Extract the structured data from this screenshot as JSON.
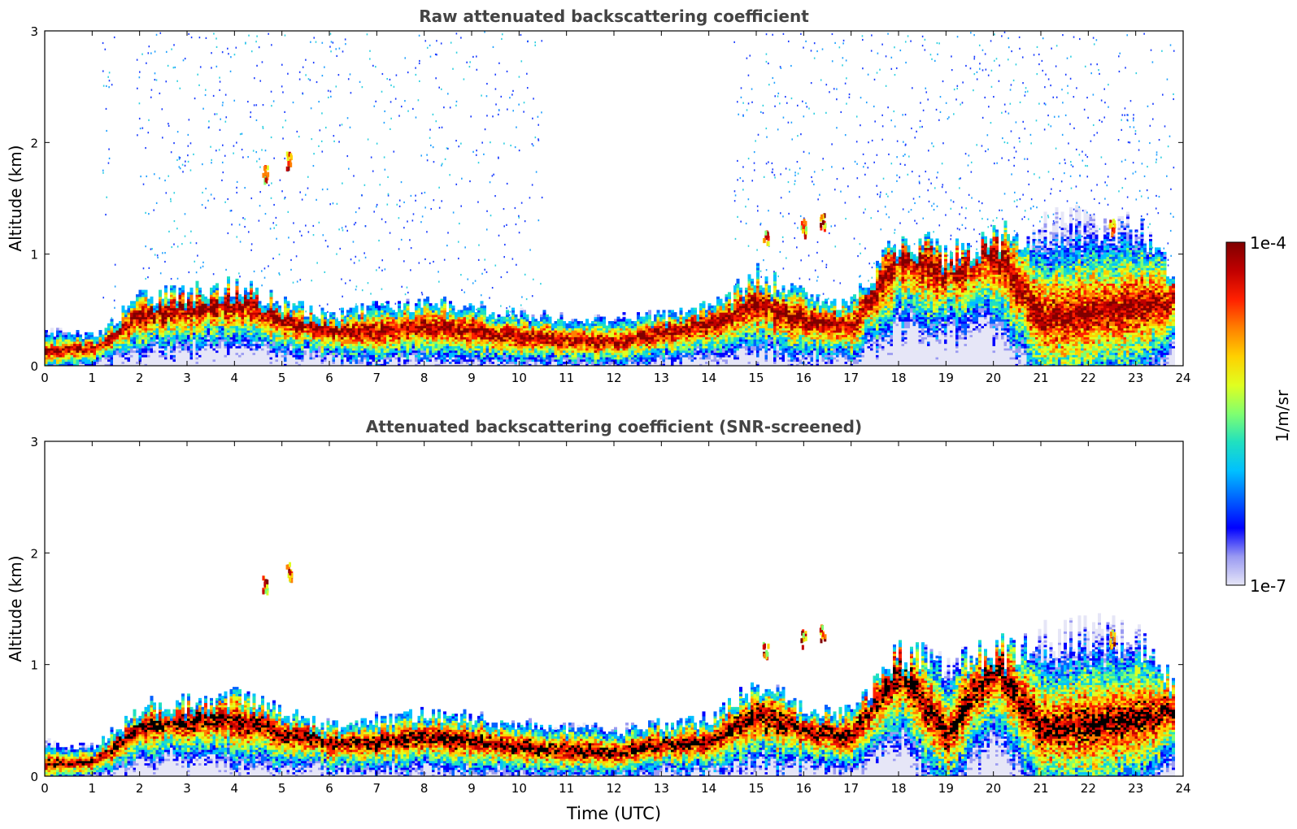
{
  "chart_data": [
    {
      "type": "heatmap",
      "title": "Raw attenuated backscattering coefficient",
      "xlabel": "",
      "ylabel": "Altitude (km)",
      "xlim": [
        0,
        24
      ],
      "ylim": [
        0,
        3
      ],
      "x_ticks": [
        "0",
        "1",
        "2",
        "3",
        "4",
        "5",
        "6",
        "7",
        "8",
        "9",
        "10",
        "11",
        "12",
        "13",
        "14",
        "15",
        "16",
        "17",
        "18",
        "19",
        "20",
        "21",
        "22",
        "23",
        "24"
      ],
      "y_ticks": [
        "0",
        "1",
        "2",
        "3"
      ],
      "description_values": {
        "boundary_layer_top_km": [
          [
            0,
            0.3
          ],
          [
            1,
            0.25
          ],
          [
            2,
            0.6
          ],
          [
            3,
            0.65
          ],
          [
            4,
            0.7
          ],
          [
            5,
            0.55
          ],
          [
            6,
            0.45
          ],
          [
            7,
            0.5
          ],
          [
            8,
            0.55
          ],
          [
            9,
            0.5
          ],
          [
            10,
            0.45
          ],
          [
            11,
            0.42
          ],
          [
            12,
            0.4
          ],
          [
            13,
            0.45
          ],
          [
            14,
            0.5
          ],
          [
            15,
            0.8
          ],
          [
            16,
            0.6
          ],
          [
            17,
            0.55
          ],
          [
            18,
            1.1
          ],
          [
            19,
            1.0
          ],
          [
            20,
            1.1
          ],
          [
            21,
            1.2
          ],
          [
            22,
            1.3
          ],
          [
            23,
            1.2
          ],
          [
            24,
            0.7
          ]
        ],
        "aerosol_layer_core_km": [
          [
            0,
            0.12
          ],
          [
            1,
            0.15
          ],
          [
            2,
            0.45
          ],
          [
            3,
            0.5
          ],
          [
            4,
            0.55
          ],
          [
            5,
            0.4
          ],
          [
            6,
            0.3
          ],
          [
            7,
            0.3
          ],
          [
            8,
            0.35
          ],
          [
            9,
            0.3
          ],
          [
            10,
            0.25
          ],
          [
            11,
            0.22
          ],
          [
            12,
            0.2
          ],
          [
            13,
            0.3
          ],
          [
            14,
            0.35
          ],
          [
            15,
            0.55
          ],
          [
            16,
            0.4
          ],
          [
            17,
            0.35
          ],
          [
            18,
            0.95
          ],
          [
            19,
            0.85
          ],
          [
            20,
            1.0
          ],
          [
            21,
            0.4
          ],
          [
            22,
            0.45
          ],
          [
            23,
            0.5
          ],
          [
            24,
            0.6
          ]
        ],
        "elevated_patches": [
          {
            "t": 4.65,
            "z": 1.68
          },
          {
            "t": 5.15,
            "z": 1.8
          },
          {
            "t": 15.2,
            "z": 1.1
          },
          {
            "t": 16.0,
            "z": 1.2
          },
          {
            "t": 16.4,
            "z": 1.25
          },
          {
            "t": 22.5,
            "z": 1.2
          }
        ],
        "noise_free_gaps_hours": [
          [
            0.0,
            1.2
          ],
          [
            1.5,
            1.9
          ],
          [
            10.5,
            14.5
          ],
          [
            22.4,
            22.6
          ]
        ]
      }
    },
    {
      "type": "heatmap",
      "title": "Attenuated backscattering coefficient (SNR-screened)",
      "xlabel": "Time (UTC)",
      "ylabel": "Altitude (km)",
      "xlim": [
        0,
        24
      ],
      "ylim": [
        0,
        3
      ],
      "x_ticks": [
        "0",
        "1",
        "2",
        "3",
        "4",
        "5",
        "6",
        "7",
        "8",
        "9",
        "10",
        "11",
        "12",
        "13",
        "14",
        "15",
        "16",
        "17",
        "18",
        "19",
        "20",
        "21",
        "22",
        "23",
        "24"
      ],
      "y_ticks": [
        "0",
        "1",
        "2",
        "3"
      ],
      "description_values": {
        "saturated_core_km": [
          [
            0,
            0.1
          ],
          [
            1,
            0.12
          ],
          [
            2,
            0.45
          ],
          [
            3,
            0.5
          ],
          [
            4,
            0.5
          ],
          [
            5,
            0.38
          ],
          [
            6,
            0.28
          ],
          [
            7,
            0.3
          ],
          [
            8,
            0.35
          ],
          [
            9,
            0.3
          ],
          [
            10,
            0.25
          ],
          [
            11,
            0.22
          ],
          [
            12,
            0.2
          ],
          [
            13,
            0.28
          ],
          [
            14,
            0.3
          ],
          [
            15,
            0.55
          ],
          [
            16,
            0.4
          ],
          [
            17,
            0.35
          ],
          [
            18,
            0.95
          ],
          [
            19,
            0.35
          ],
          [
            20,
            1.0
          ],
          [
            21,
            0.4
          ],
          [
            22,
            0.45
          ],
          [
            23,
            0.5
          ],
          [
            24,
            0.6
          ]
        ]
      }
    }
  ],
  "colorbar": {
    "label": "1/m/sr",
    "max_label": "1e-4",
    "min_label": "1e-7",
    "colors": [
      "#e6e6f7",
      "#9a9af2",
      "#0000ff",
      "#0060ff",
      "#00c0ff",
      "#20e0c0",
      "#80ff70",
      "#e0ff20",
      "#ffd000",
      "#ff8000",
      "#ff2000",
      "#c00000",
      "#800000"
    ]
  }
}
